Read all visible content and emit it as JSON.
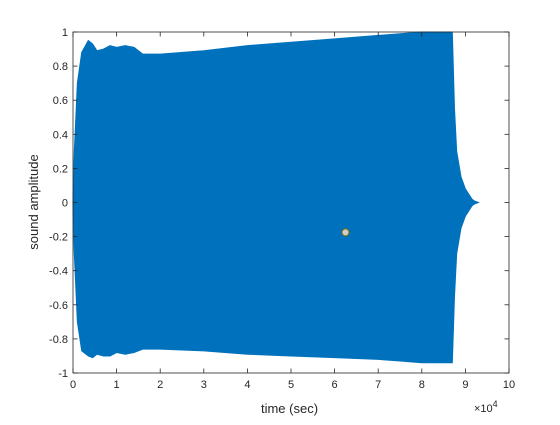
{
  "chart_data": {
    "type": "area",
    "title": "",
    "xlabel": "time (sec)",
    "ylabel": "sound amplitude",
    "x_exponent_label": "×10",
    "x_exponent_power": "4",
    "xlim": [
      0,
      10
    ],
    "ylim": [
      -1,
      1
    ],
    "x_ticks": [
      0,
      1,
      2,
      3,
      4,
      5,
      6,
      7,
      8,
      9,
      10
    ],
    "x_tick_labels": [
      "0",
      "1",
      "2",
      "3",
      "4",
      "5",
      "6",
      "7",
      "8",
      "9",
      "10"
    ],
    "y_ticks": [
      1,
      0.8,
      0.6,
      0.4,
      0.2,
      0,
      -0.2,
      -0.4,
      -0.6,
      -0.8,
      -1
    ],
    "y_tick_labels": [
      "1",
      "0.8",
      "0.6",
      "0.4",
      "0.2",
      "0",
      "-0.2",
      "-0.4",
      "-0.6",
      "-0.8",
      "-1"
    ],
    "grid": false,
    "series": [
      {
        "color": "#0072BD",
        "upper_envelope": {
          "x": [
            0,
            0.03,
            0.1,
            0.2,
            0.35,
            0.45,
            0.55,
            0.7,
            0.85,
            1.0,
            1.2,
            1.4,
            1.6,
            2.0,
            3.0,
            4.0,
            5.0,
            6.0,
            7.0,
            7.5,
            8.0,
            8.7,
            8.75,
            8.8,
            8.9,
            9.0,
            9.1,
            9.15,
            9.2,
            9.3
          ],
          "y": [
            0.0,
            0.3,
            0.7,
            0.88,
            0.95,
            0.93,
            0.89,
            0.9,
            0.92,
            0.91,
            0.92,
            0.91,
            0.87,
            0.87,
            0.89,
            0.92,
            0.94,
            0.96,
            0.98,
            0.99,
            1.0,
            1.0,
            0.55,
            0.3,
            0.15,
            0.08,
            0.04,
            0.02,
            0.01,
            0.0
          ]
        },
        "lower_envelope": {
          "x": [
            0,
            0.03,
            0.1,
            0.2,
            0.35,
            0.45,
            0.55,
            0.7,
            0.85,
            1.0,
            1.2,
            1.4,
            1.6,
            2.0,
            3.0,
            4.0,
            5.0,
            6.0,
            7.0,
            7.5,
            8.0,
            8.7,
            8.75,
            8.8,
            8.9,
            9.0,
            9.1,
            9.15,
            9.2,
            9.3
          ],
          "y": [
            0.0,
            -0.3,
            -0.7,
            -0.87,
            -0.9,
            -0.91,
            -0.89,
            -0.9,
            -0.9,
            -0.88,
            -0.89,
            -0.88,
            -0.86,
            -0.86,
            -0.87,
            -0.89,
            -0.9,
            -0.91,
            -0.92,
            -0.93,
            -0.94,
            -0.94,
            -0.55,
            -0.3,
            -0.15,
            -0.08,
            -0.04,
            -0.02,
            -0.01,
            0.0
          ]
        }
      }
    ],
    "annotations": [
      {
        "type": "marker",
        "x": 6.25,
        "y": -0.175,
        "fill": "#cfcfcf",
        "stroke": "#8a6d00"
      }
    ]
  }
}
